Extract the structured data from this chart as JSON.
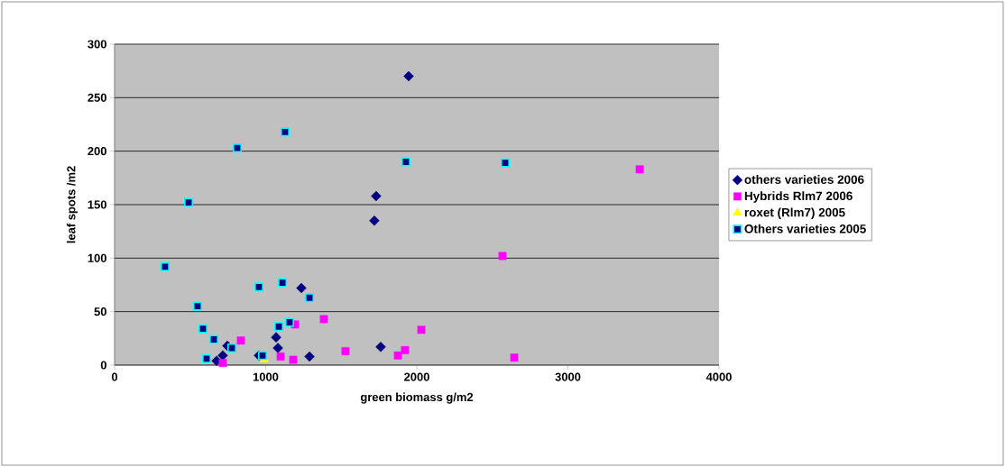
{
  "chart_data": {
    "type": "scatter",
    "xlabel": "green biomass g/m2",
    "ylabel": "leaf spots /m2",
    "xlim": [
      0,
      4000
    ],
    "xticks": [
      0,
      1000,
      2000,
      3000,
      4000
    ],
    "ylim": [
      0,
      300
    ],
    "yticks": [
      0,
      50,
      100,
      150,
      200,
      250,
      300
    ],
    "grid": "y",
    "legend": "right",
    "series": [
      {
        "name": "others varieties 2006",
        "color": "#000080",
        "marker": "diamond",
        "x": [
          1946,
          1731,
          1719,
          1236,
          1069,
          1081,
          1761,
          1290,
          746,
          716,
          675,
          955
        ],
        "values": [
          270,
          158,
          135,
          72,
          26,
          16,
          17,
          8,
          18,
          9,
          4,
          9
        ]
      },
      {
        "name": "Hybrids Rlm7 2006",
        "color": "#ff00ff",
        "marker": "square",
        "x": [
          3475,
          2567,
          1385,
          1194,
          836,
          716,
          1099,
          1182,
          1528,
          2030,
          1875,
          1922,
          2645
        ],
        "values": [
          183,
          102,
          43,
          38,
          23,
          2,
          8,
          5,
          13,
          33,
          9,
          14,
          7
        ]
      },
      {
        "name": "roxet (Rlm7) 2005",
        "color": "#ffff00",
        "marker": "triangle",
        "x": [
          991
        ],
        "values": [
          5
        ]
      },
      {
        "name": "Others varieties 2005",
        "color": "#000080",
        "marker": "square",
        "x": [
          1128,
          812,
          1928,
          2585,
          490,
          334,
          549,
          585,
          657,
          776,
          609,
          979,
          955,
          1111,
          1290,
          1087,
          1158
        ],
        "values": [
          218,
          203,
          190,
          189,
          152,
          92,
          55,
          34,
          24,
          16,
          6,
          9,
          73,
          77,
          63,
          36,
          40
        ]
      }
    ]
  }
}
